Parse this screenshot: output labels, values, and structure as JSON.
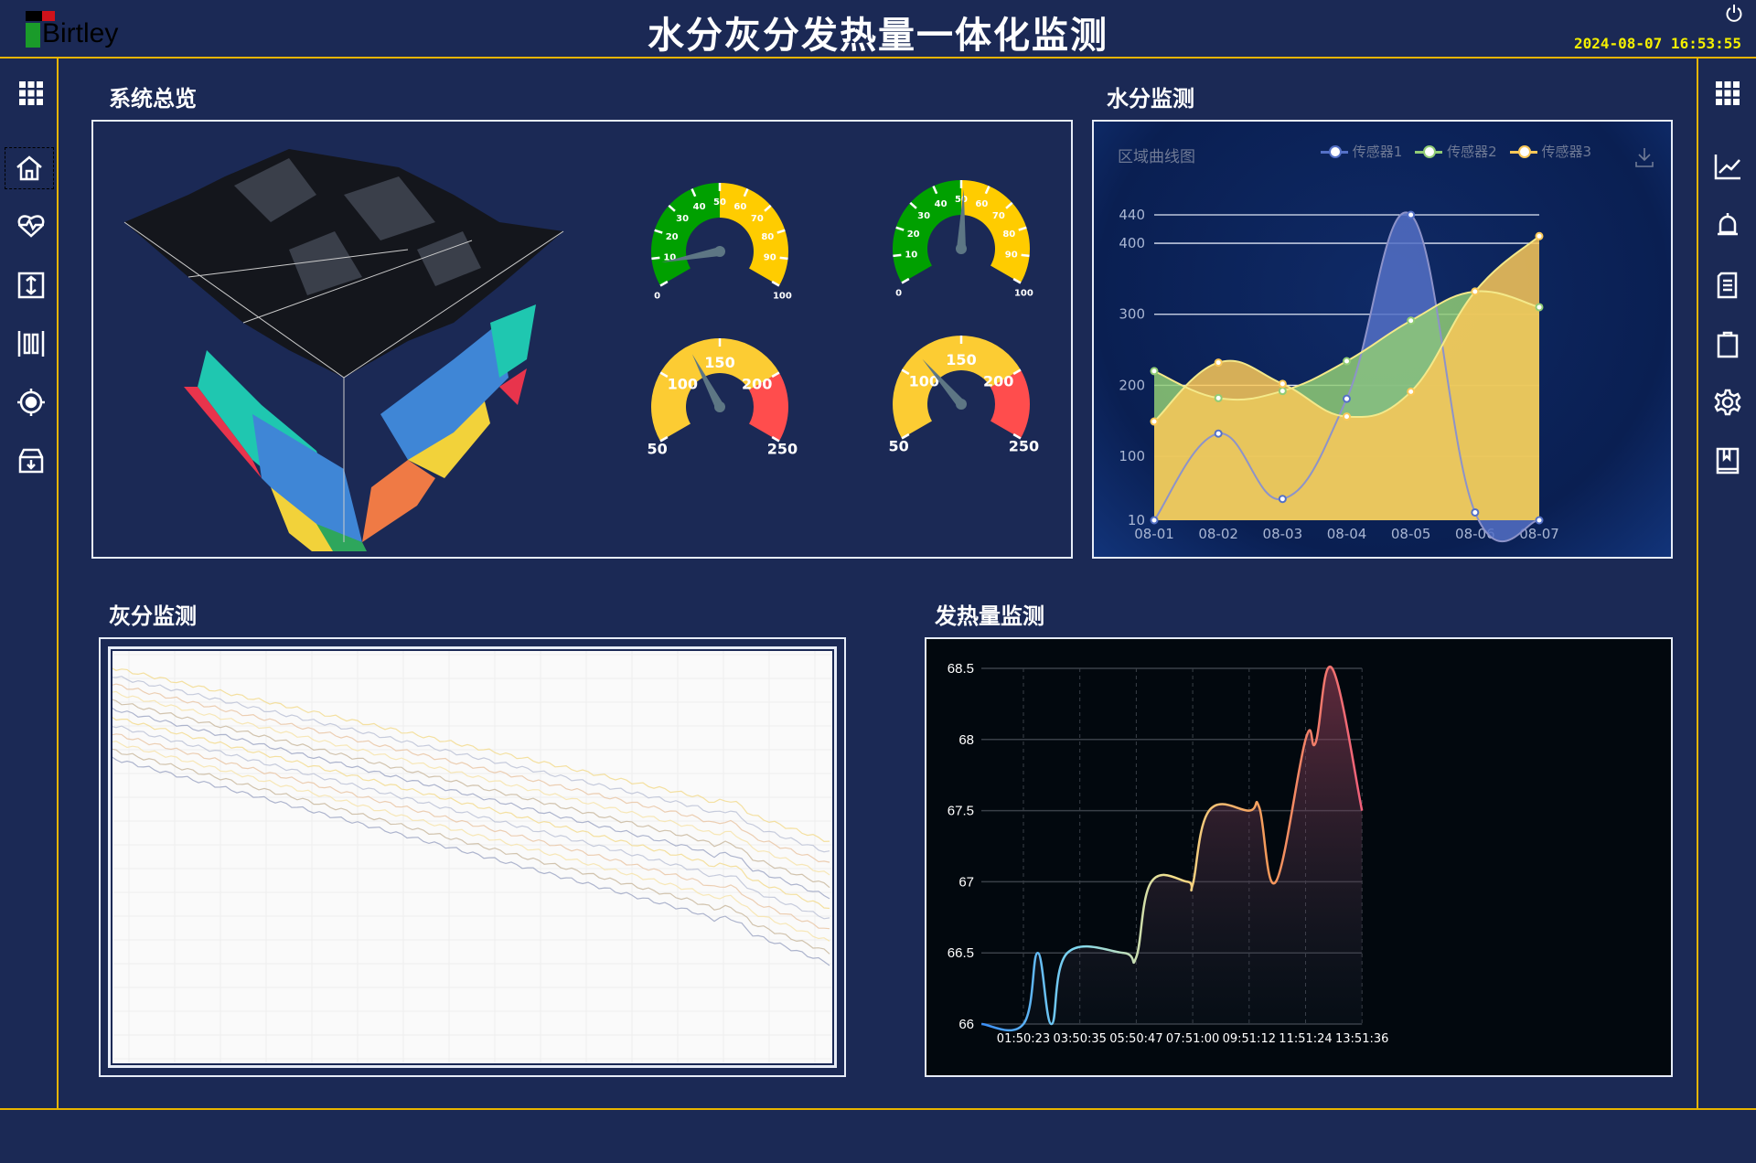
{
  "header": {
    "logo_text": "Birtley",
    "title": "水分灰分发热量一体化监测",
    "datetime": "2024-08-07  16:53:55",
    "power_icon": "power-icon"
  },
  "left_nav": [
    {
      "icon": "grid-icon"
    },
    {
      "icon": "home-icon",
      "selected": true
    },
    {
      "icon": "heart-pulse-icon"
    },
    {
      "icon": "vertical-arrows-icon"
    },
    {
      "icon": "columns-icon"
    },
    {
      "icon": "target-icon"
    },
    {
      "icon": "archive-download-icon"
    }
  ],
  "right_nav": [
    {
      "icon": "grid-icon"
    },
    {
      "icon": "line-chart-icon"
    },
    {
      "icon": "bell-icon"
    },
    {
      "icon": "document-icon"
    },
    {
      "icon": "clipboard-icon"
    },
    {
      "icon": "gear-icon"
    },
    {
      "icon": "book-icon"
    }
  ],
  "overview": {
    "title": "系统总览",
    "gauges": [
      {
        "min": 0,
        "max": 100,
        "value": 8,
        "labels": [
          "0",
          "10",
          "20",
          "30",
          "40",
          "50",
          "60",
          "70",
          "80",
          "90",
          "100"
        ],
        "bands": [
          {
            "to": 50,
            "color": "#00a000"
          },
          {
            "to": 100,
            "color": "#ffcc00"
          }
        ]
      },
      {
        "min": 0,
        "max": 100,
        "value": 51,
        "labels": [
          "0",
          "10",
          "20",
          "30",
          "40",
          "50",
          "60",
          "70",
          "80",
          "90",
          "100"
        ],
        "bands": [
          {
            "to": 50,
            "color": "#00a000"
          },
          {
            "to": 100,
            "color": "#ffcc00"
          }
        ]
      },
      {
        "min": 50,
        "max": 250,
        "value": 127,
        "labels": [
          "50",
          "100",
          "150",
          "200",
          "250"
        ],
        "bands": [
          {
            "to": 200,
            "color": "#fccc33"
          },
          {
            "to": 250,
            "color": "#ff4d4d"
          }
        ]
      },
      {
        "min": 50,
        "max": 250,
        "value": 116,
        "labels": [
          "50",
          "100",
          "150",
          "200",
          "250"
        ],
        "bands": [
          {
            "to": 200,
            "color": "#fccc33"
          },
          {
            "to": 250,
            "color": "#ff4d4d"
          }
        ]
      }
    ]
  },
  "moisture": {
    "title": "水分监测"
  },
  "ash": {
    "title": "灰分监测"
  },
  "heat": {
    "title": "发热量监测"
  },
  "chart_data": [
    {
      "type": "area",
      "title": "区域曲线图",
      "categories": [
        "08-01",
        "08-02",
        "08-03",
        "08-04",
        "08-05",
        "08-06",
        "08-07"
      ],
      "yticks": [
        10,
        100,
        200,
        300,
        400,
        440
      ],
      "ylim": [
        10,
        440
      ],
      "legend": "top-right",
      "download_icon": "download-icon",
      "series": [
        {
          "name": "传感器1",
          "color": "#5470c6",
          "values": [
            10,
            132,
            40,
            181,
            440,
            21,
            10
          ]
        },
        {
          "name": "传感器2",
          "color": "#91cc75",
          "values": [
            220,
            182,
            192,
            234,
            291,
            332,
            310
          ]
        },
        {
          "name": "传感器3",
          "color": "#fac858",
          "values": [
            149,
            232,
            202,
            156,
            191,
            332,
            410
          ]
        }
      ]
    },
    {
      "type": "line",
      "xticks": [
        "01:50:23",
        "03:50:35",
        "05:50:47",
        "07:51:00",
        "09:51:12",
        "11:51:24",
        "13:51:36"
      ],
      "yticks": [
        "66",
        "66.5",
        "67",
        "67.5",
        "68",
        "68.5"
      ],
      "ylim": [
        66,
        68.5
      ],
      "grid": true,
      "colors": [
        "#3a8ef6",
        "#7fd8f0",
        "#f5e08a",
        "#f59a5a",
        "#f0607a"
      ],
      "points": [
        [
          "00:21:00",
          66
        ],
        [
          "01:50:23",
          66
        ],
        [
          "02:20:50",
          66.5
        ],
        [
          "02:50:00",
          66
        ],
        [
          "03:24:00",
          66.5
        ],
        [
          "05:24:00",
          66.5
        ],
        [
          "05:50:47",
          66.47
        ],
        [
          "06:23:00",
          67
        ],
        [
          "07:40:00",
          67
        ],
        [
          "07:51:00",
          66.98
        ],
        [
          "08:26:00",
          67.5
        ],
        [
          "09:51:12",
          67.5
        ],
        [
          "10:13:00",
          67.52
        ],
        [
          "10:48:00",
          67
        ],
        [
          "11:51:24",
          68
        ],
        [
          "12:13:00",
          67.98
        ],
        [
          "12:48:00",
          68.5
        ],
        [
          "13:51:36",
          67.5
        ]
      ]
    }
  ]
}
